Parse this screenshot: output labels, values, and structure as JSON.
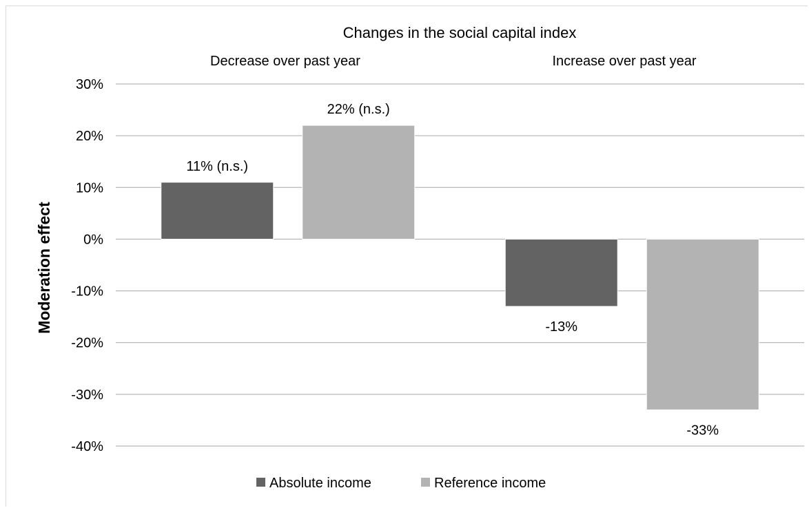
{
  "chart_data": {
    "type": "bar",
    "title": "Changes in the social capital index",
    "ylabel": "Moderation effect",
    "xlabel": "",
    "categories": [
      "Decrease over past year",
      "Increase over past year"
    ],
    "series": [
      {
        "name": "Absolute income",
        "values": [
          11,
          -13
        ],
        "labels": [
          "11% (n.s.)",
          "-13%"
        ],
        "color": "#636363"
      },
      {
        "name": "Reference income",
        "values": [
          22,
          -33
        ],
        "labels": [
          "22% (n.s.)",
          "-33%"
        ],
        "color": "#b3b3b3"
      }
    ],
    "ylim": [
      -40,
      30
    ],
    "yticks": [
      30,
      20,
      10,
      0,
      -10,
      -20,
      -30,
      -40
    ],
    "ytick_labels": [
      "30%",
      "20%",
      "10%",
      "0%",
      "-10%",
      "-20%",
      "-30%",
      "-40%"
    ],
    "category_axis_position": "top",
    "grid": true,
    "legend": "bottom",
    "gridline_color": "#a6a6a6"
  }
}
